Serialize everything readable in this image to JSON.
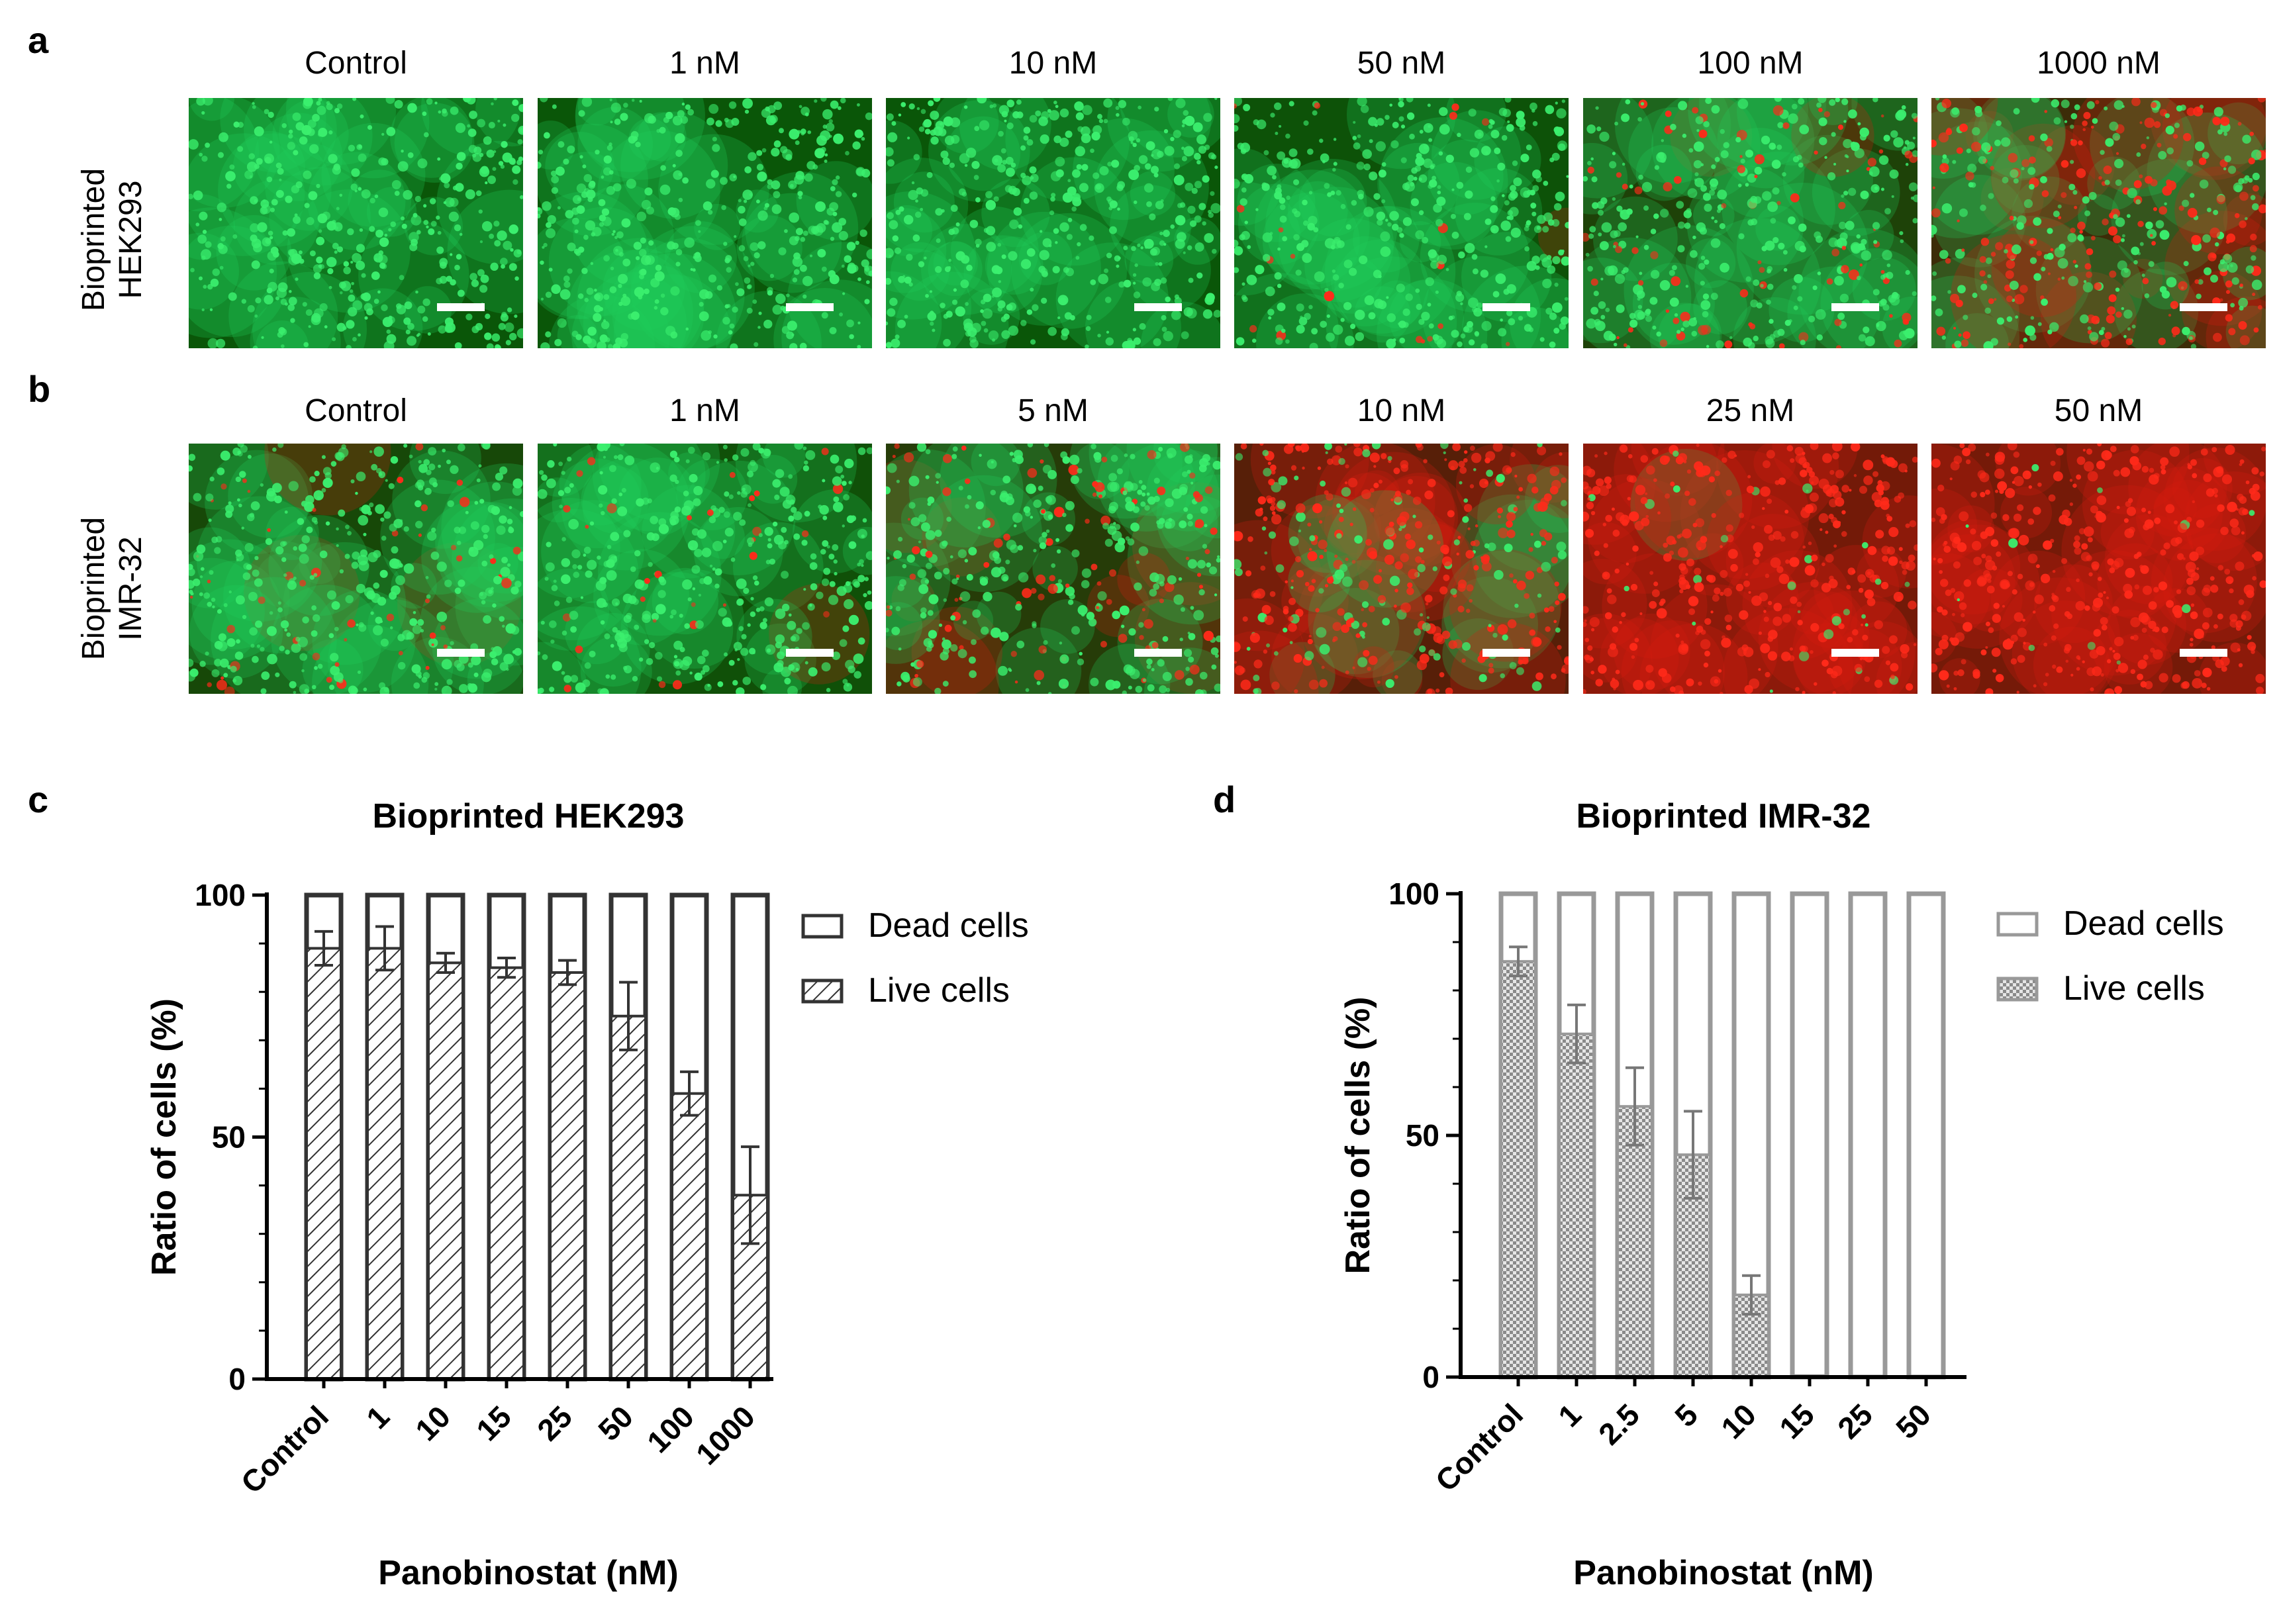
{
  "panels": {
    "a": {
      "letter": "a",
      "row_label_line1": "Bioprinted",
      "row_label_line2": "HEK293",
      "images": [
        {
          "label": "Control",
          "dead_level": 0.0
        },
        {
          "label": "1 nM",
          "dead_level": 0.0
        },
        {
          "label": "10 nM",
          "dead_level": 0.0
        },
        {
          "label": "50 nM",
          "dead_level": 0.03
        },
        {
          "label": "100 nM",
          "dead_level": 0.18
        },
        {
          "label": "1000 nM",
          "dead_level": 0.45
        }
      ]
    },
    "b": {
      "letter": "b",
      "row_label_line1": "Bioprinted",
      "row_label_line2": "IMR-32",
      "images": [
        {
          "label": "Control",
          "dead_level": 0.12
        },
        {
          "label": "1 nM",
          "dead_level": 0.05
        },
        {
          "label": "5 nM",
          "dead_level": 0.25
        },
        {
          "label": "10 nM",
          "dead_level": 0.7
        },
        {
          "label": "25 nM",
          "dead_level": 0.95
        },
        {
          "label": "50 nM",
          "dead_level": 0.97
        }
      ]
    },
    "c": {
      "letter": "c"
    },
    "d": {
      "letter": "d"
    }
  },
  "colors": {
    "live_green": "#1fd15a",
    "dead_red": "#d81c10",
    "dark_bg": "#0a1a06",
    "hek_bar_stroke": "#333333",
    "imr_bar_stroke": "#999999"
  },
  "chart_data": [
    {
      "type": "bar",
      "stacked": true,
      "title": "Bioprinted HEK293",
      "xlabel": "Panobinostat (nM)",
      "ylabel": "Ratio of cells (%)",
      "ylim": [
        0,
        100
      ],
      "yticks": [
        "0",
        "50",
        "100"
      ],
      "categories": [
        "Control",
        "1",
        "10",
        "15",
        "25",
        "50",
        "100",
        "1000"
      ],
      "series": [
        {
          "name": "Dead cells",
          "pattern": "open",
          "values": [
            11,
            11,
            14,
            15,
            16,
            25,
            41,
            62
          ]
        },
        {
          "name": "Live cells",
          "pattern": "hatched",
          "values": [
            89,
            89,
            86,
            85,
            84,
            75,
            59,
            38
          ],
          "error": [
            3.5,
            4.5,
            2,
            2,
            2.5,
            7,
            4.5,
            10
          ]
        }
      ],
      "legend_position": "right"
    },
    {
      "type": "bar",
      "stacked": true,
      "title": "Bioprinted IMR-32",
      "xlabel": "Panobinostat (nM)",
      "ylabel": "Ratio of cells (%)",
      "ylim": [
        0,
        100
      ],
      "yticks": [
        "0",
        "50",
        "100"
      ],
      "categories": [
        "Control",
        "1",
        "2.5",
        "5",
        "10",
        "15",
        "25",
        "50"
      ],
      "series": [
        {
          "name": "Dead cells",
          "pattern": "open",
          "values": [
            14,
            29,
            44,
            54,
            83,
            99.7,
            99.8,
            99.8
          ]
        },
        {
          "name": "Live cells",
          "pattern": "checkered",
          "values": [
            86,
            71,
            56,
            46,
            17,
            0.3,
            0.2,
            0.2
          ],
          "error": [
            3,
            6,
            8,
            9,
            4,
            0,
            0,
            0
          ]
        }
      ],
      "legend_position": "right"
    }
  ]
}
